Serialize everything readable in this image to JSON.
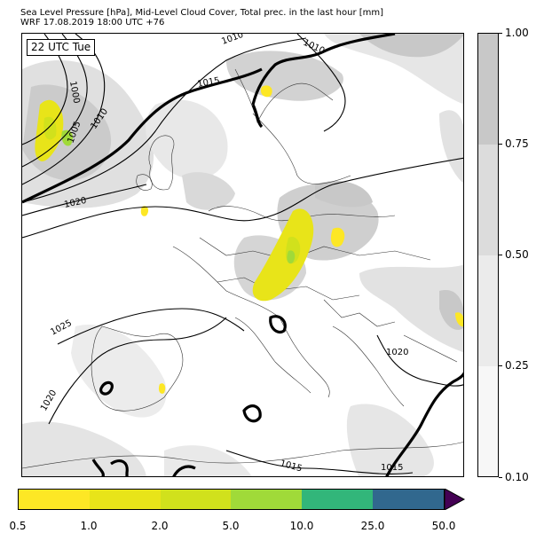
{
  "header": {
    "title": "Sea Level Pressure [hPa], Mid-Level Cloud Cover, Total prec. in the last hour [mm]",
    "subtitle": "WRF 17.08.2019 18:00 UTC +76"
  },
  "time_label": "22 UTC Tue",
  "isobar_labels": [
    "1010",
    "1010",
    "1015",
    "1000",
    "1005",
    "1010",
    "1020",
    "1025",
    "1020",
    "1020",
    "1015",
    "1015"
  ],
  "cloud_legend": {
    "ticks": [
      "1.00",
      "0.75",
      "0.50",
      "0.25",
      "0.10"
    ],
    "colors": [
      "#c8c8c8",
      "#dcdcdc",
      "#ebebeb",
      "#f7f7f7"
    ]
  },
  "precip_legend": {
    "ticks": [
      "0.5",
      "1.0",
      "2.0",
      "5.0",
      "10.0",
      "25.0",
      "50.0"
    ],
    "colors": [
      "#fde725",
      "#e8e419",
      "#d1e11c",
      "#a0da39",
      "#32b67a",
      "#31688e",
      "#3e4a89"
    ],
    "extend_color": "#440154"
  }
}
